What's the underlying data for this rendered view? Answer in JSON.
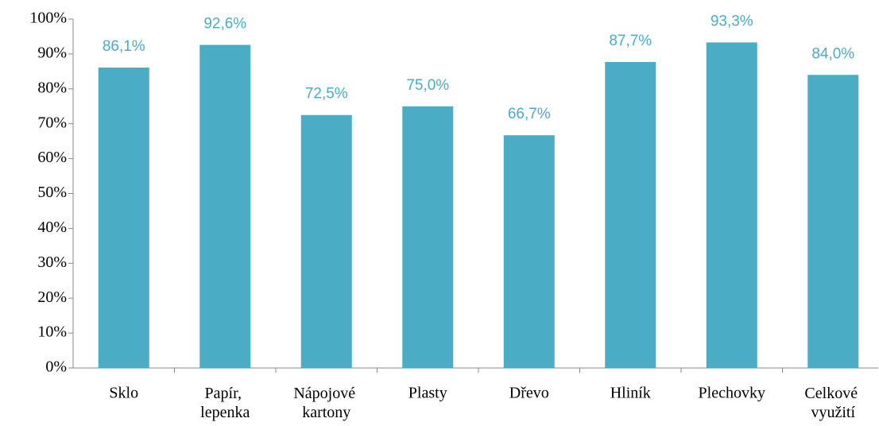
{
  "chart_data": {
    "type": "bar",
    "categories": [
      "Sklo",
      "Papír, lepenka",
      "Nápojové kartony",
      "Plasty",
      "Dřevo",
      "Hliník",
      "Plechovky",
      "Celkové využití"
    ],
    "values": [
      86.1,
      92.6,
      72.5,
      75.0,
      66.7,
      87.7,
      93.3,
      84.0
    ],
    "value_labels": [
      "86,1%",
      "92,6%",
      "72,5%",
      "75,0%",
      "66,7%",
      "87,7%",
      "93,3%",
      "84,0%"
    ],
    "color": "#4bacc6",
    "ylim": [
      0,
      100
    ],
    "yticks": [
      {
        "value": 0,
        "label": "0%"
      },
      {
        "value": 10,
        "label": "10%"
      },
      {
        "value": 20,
        "label": "20%"
      },
      {
        "value": 30,
        "label": "30%"
      },
      {
        "value": 40,
        "label": "40%"
      },
      {
        "value": 50,
        "label": "50%"
      },
      {
        "value": 60,
        "label": "60%"
      },
      {
        "value": 70,
        "label": "70%"
      },
      {
        "value": 80,
        "label": "80%"
      },
      {
        "value": 90,
        "label": "90%"
      },
      {
        "value": 100,
        "label": "100%"
      }
    ],
    "grid": false
  }
}
